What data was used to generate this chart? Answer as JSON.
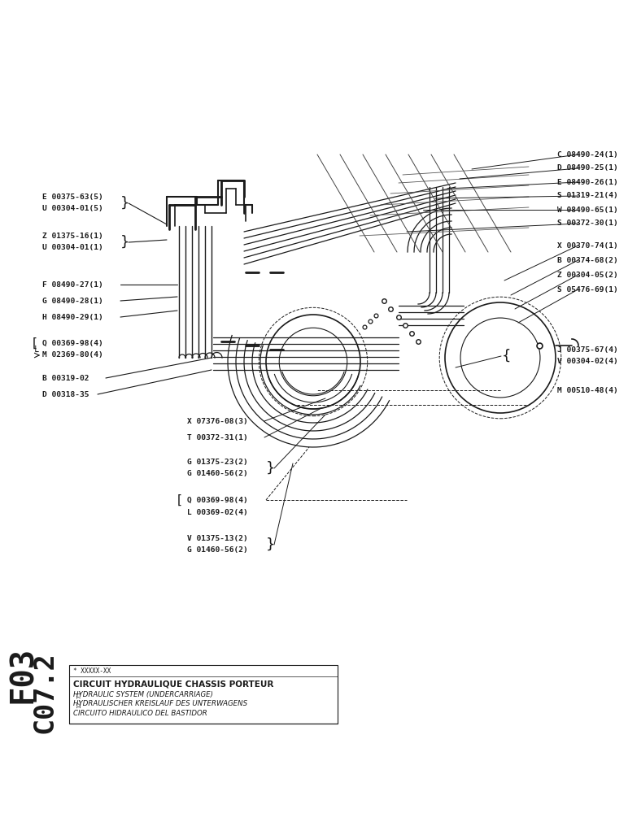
{
  "bg_color": "#ffffff",
  "line_color": "#1a1a1a",
  "text_color": "#1a1a1a",
  "figsize": [
    7.72,
    10.0
  ],
  "dpi": 100,
  "title_box": {
    "lines": [
      "CIRCUIT HYDRAULIQUE CHASSIS PORTEUR",
      "HYDRAULIC SYSTEM (UNDERCARRIAGE)",
      "HYDRAULISCHER KREISLAUF DES UNTERWAGENS",
      "CIRCUITO HIDRAULICO DEL BASTIDOR"
    ],
    "ref": "* XXXXX-XX",
    "page_code": "F03 C07.2"
  }
}
